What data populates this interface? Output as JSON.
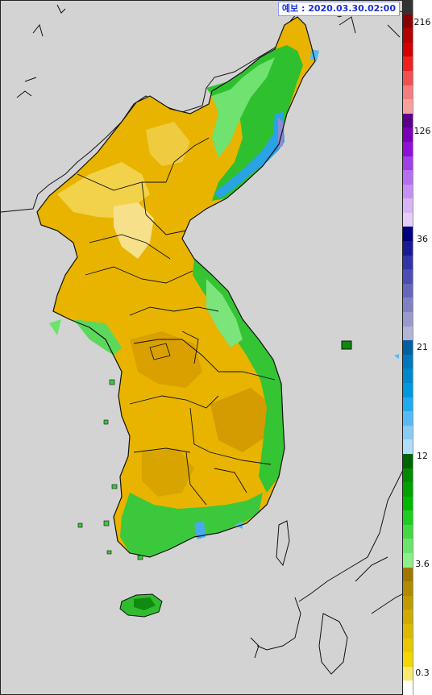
{
  "forecast": {
    "label": "예보 : 2020.03.30.02:00"
  },
  "legend": {
    "ticks": [
      "216",
      "126",
      "36",
      "21",
      "12",
      "3.6",
      "0.3"
    ],
    "colors": [
      "#333333",
      "#8b0000",
      "#b30000",
      "#d40000",
      "#ee2222",
      "#f05050",
      "#f47d7d",
      "#f7a0a0",
      "#5a008a",
      "#7a00b8",
      "#8f10d6",
      "#a040e8",
      "#b470ee",
      "#c690f2",
      "#d8b4f6",
      "#e6cdf8",
      "#000080",
      "#1a1a99",
      "#3333aa",
      "#4d4db3",
      "#6666bb",
      "#8080c4",
      "#9999cc",
      "#b3b3d6",
      "#0060a0",
      "#0077bb",
      "#0088cc",
      "#0099dd",
      "#22aaee",
      "#55bbf2",
      "#88ccf6",
      "#b0ddf8",
      "#006400",
      "#008a00",
      "#00a000",
      "#00b800",
      "#1fcc1f",
      "#44d844",
      "#6be46b",
      "#8cef8c",
      "#a07800",
      "#b08a00",
      "#c09a00",
      "#cfaa00",
      "#ddba00",
      "#e8c800",
      "#f2d800",
      "#fae870",
      "#ffffff"
    ],
    "colors_meaning": "precipitation scale colors from top (high) to bottom (low)"
  }
}
